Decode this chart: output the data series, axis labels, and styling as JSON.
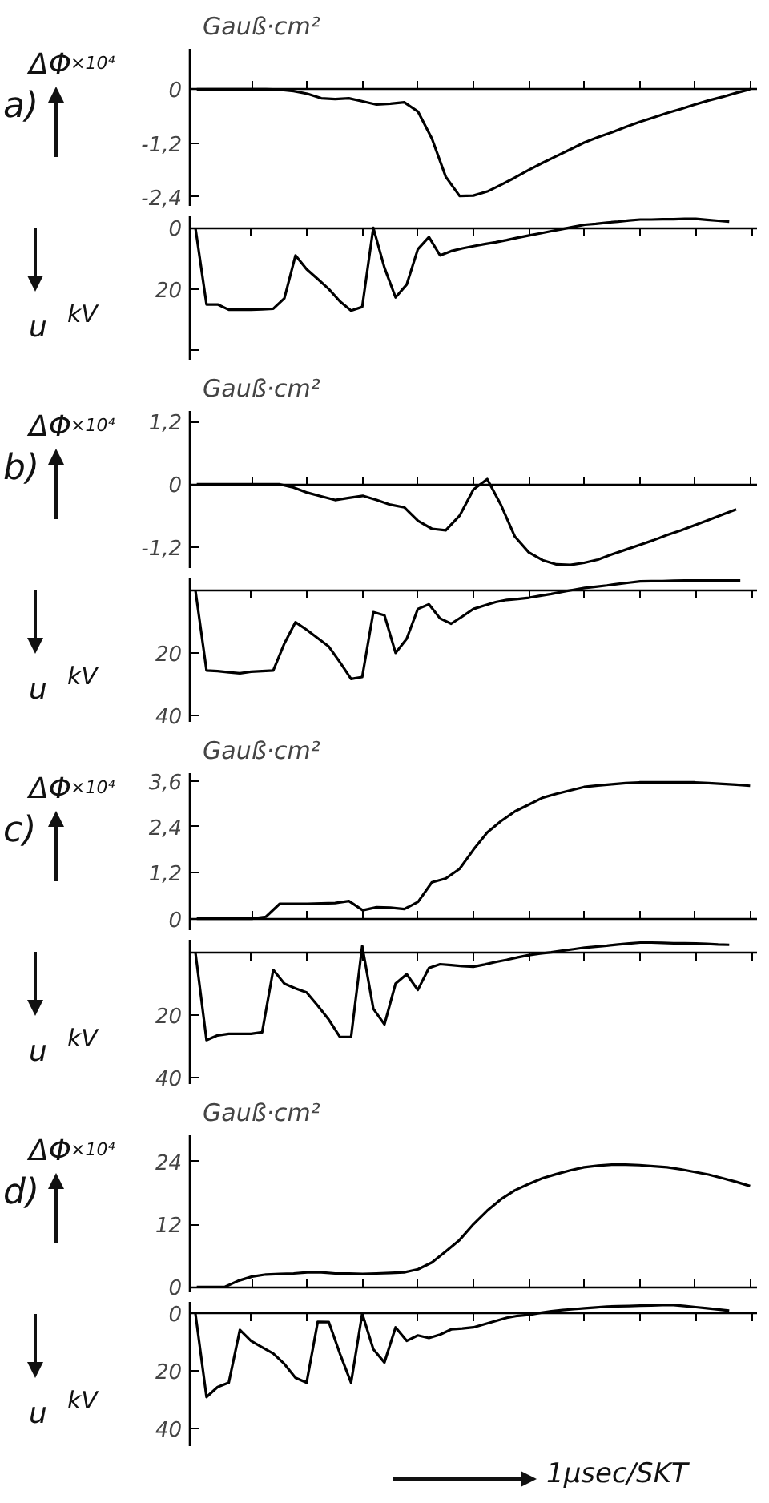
{
  "chart_data": [
    {
      "type": "line",
      "title": "a)",
      "ylabel": "ΔΦ",
      "annotations": [
        "×10⁴",
        "Gauß·cm²"
      ],
      "color": "#000000",
      "ylim": [
        -2.6,
        0.9
      ],
      "tick_labels": "y",
      "yticks": [
        0,
        {
          "value": -1.2,
          "label": "-1,2"
        },
        {
          "value": -2.4,
          "label": "-2,4"
        }
      ],
      "categories": [
        null,
        null,
        null,
        null,
        null,
        null,
        null,
        null,
        null,
        null,
        null,
        null,
        null,
        null,
        null,
        null,
        null,
        null,
        null,
        null,
        null,
        null,
        null,
        null,
        null,
        null,
        null,
        null,
        null,
        null,
        null,
        null,
        null,
        null,
        null,
        null,
        null,
        null,
        null,
        null,
        null
      ],
      "values": [
        0,
        0,
        0,
        0,
        0,
        0,
        -0.01,
        -0.04,
        -0.1,
        -0.2,
        -0.22,
        -0.2,
        -0.27,
        -0.34,
        -0.32,
        -0.29,
        -0.5,
        -1.1,
        -1.95,
        -2.38,
        -2.37,
        -2.28,
        -2.13,
        -1.97,
        -1.8,
        -1.64,
        -1.49,
        -1.34,
        -1.19,
        -1.07,
        -0.96,
        -0.84,
        -0.73,
        -0.63,
        -0.53,
        -0.44,
        -0.34,
        -0.25,
        -0.17,
        -0.08,
        0
      ]
    },
    {
      "type": "line",
      "ylabel": "u",
      "annotations": [
        "kV"
      ],
      "color": "#000000",
      "ylim": [
        43,
        -4
      ],
      "tick_labels": "y",
      "yticks": [
        0,
        20,
        {
          "value": 40,
          "label": null
        }
      ],
      "categories": [
        null,
        null,
        null,
        null,
        null,
        null,
        null,
        null,
        null,
        null,
        null,
        null,
        null,
        null,
        null,
        null,
        null,
        null,
        null,
        null,
        null,
        null,
        null,
        null,
        null,
        null,
        null,
        null,
        null,
        null,
        null,
        null,
        null,
        null,
        null,
        null,
        null,
        null,
        null,
        null,
        null,
        null,
        null,
        null,
        null,
        null,
        null,
        null,
        null,
        null,
        null
      ],
      "values": [
        0,
        25,
        25,
        26.7,
        26.7,
        26.7,
        26.6,
        26.4,
        23,
        9,
        13.5,
        16.7,
        20,
        24,
        27,
        25.8,
        0,
        13,
        22.7,
        18.5,
        7,
        3,
        9,
        7.6,
        6.7,
        6,
        5.3,
        4.7,
        4,
        3.2,
        2.5,
        1.8,
        1.1,
        0.4,
        -0.3,
        -1,
        -1.3,
        -1.7,
        -2,
        -2.4,
        -2.7,
        -2.7,
        -2.8,
        -2.8,
        -2.9,
        -2.9,
        -2.6,
        -2.3,
        -2,
        null,
        null
      ]
    },
    {
      "type": "line",
      "title": "b)",
      "ylabel": "ΔΦ",
      "annotations": [
        "×10⁴",
        "Gauß·cm²"
      ],
      "color": "#000000",
      "ylim": [
        -1.6,
        1.4
      ],
      "tick_labels": "y",
      "yticks": [
        {
          "value": 1.2,
          "label": "1,2"
        },
        0,
        {
          "value": -1.2,
          "label": "-1,2"
        }
      ],
      "categories": [
        null,
        null,
        null,
        null,
        null,
        null,
        null,
        null,
        null,
        null,
        null,
        null,
        null,
        null,
        null,
        null,
        null,
        null,
        null,
        null,
        null,
        null,
        null,
        null,
        null,
        null,
        null,
        null,
        null,
        null,
        null,
        null,
        null,
        null,
        null,
        null,
        null,
        null,
        null,
        null,
        null
      ],
      "values": [
        0,
        0,
        0,
        0,
        0,
        0,
        0,
        -0.06,
        -0.16,
        -0.23,
        -0.3,
        -0.26,
        -0.22,
        -0.3,
        -0.39,
        -0.44,
        -0.7,
        -0.85,
        -0.88,
        -0.6,
        -0.1,
        0.1,
        -0.4,
        -1.0,
        -1.3,
        -1.45,
        -1.53,
        -1.54,
        -1.5,
        -1.44,
        -1.34,
        -1.25,
        -1.16,
        -1.07,
        -0.97,
        -0.88,
        -0.78,
        -0.68,
        -0.58,
        -0.48,
        null
      ]
    },
    {
      "type": "line",
      "ylabel": "u",
      "annotations": [
        "kV"
      ],
      "color": "#000000",
      "ylim": [
        42,
        -4
      ],
      "tick_labels": "y",
      "yticks": [
        20,
        40
      ],
      "categories": [
        null,
        null,
        null,
        null,
        null,
        null,
        null,
        null,
        null,
        null,
        null,
        null,
        null,
        null,
        null,
        null,
        null,
        null,
        null,
        null,
        null,
        null,
        null,
        null,
        null,
        null,
        null,
        null,
        null,
        null,
        null,
        null,
        null,
        null,
        null,
        null,
        null,
        null,
        null,
        null,
        null,
        null,
        null,
        null,
        null,
        null,
        null,
        null,
        null,
        null,
        null
      ],
      "values": [
        0,
        25.6,
        25.8,
        26.2,
        26.5,
        26,
        25.8,
        25.6,
        17,
        10.2,
        12.6,
        15.3,
        18,
        23,
        28.3,
        27.7,
        7,
        8,
        20,
        15.5,
        6,
        4.5,
        9,
        10.7,
        8.4,
        6,
        4.9,
        3.8,
        3.1,
        2.8,
        2.4,
        1.8,
        1.2,
        0.5,
        -0.1,
        -0.7,
        -1.1,
        -1.5,
        -2,
        -2.4,
        -2.8,
        -2.9,
        -2.9,
        -3,
        -3.1,
        -3.1,
        -3.1,
        -3.1,
        -3.1,
        -3.1,
        null
      ]
    },
    {
      "type": "line",
      "title": "c)",
      "ylabel": "ΔΦ",
      "annotations": [
        "×10⁴",
        "Gauß·cm²"
      ],
      "color": "#000000",
      "ylim": [
        -0.3,
        3.8
      ],
      "tick_labels": "y",
      "yticks": [
        0,
        {
          "value": 1.2,
          "label": "1,2"
        },
        {
          "value": 2.4,
          "label": "2,4"
        },
        {
          "value": 3.6,
          "label": "3,6"
        }
      ],
      "categories": [
        null,
        null,
        null,
        null,
        null,
        null,
        null,
        null,
        null,
        null,
        null,
        null,
        null,
        null,
        null,
        null,
        null,
        null,
        null,
        null,
        null,
        null,
        null,
        null,
        null,
        null,
        null,
        null,
        null,
        null,
        null,
        null,
        null,
        null,
        null,
        null,
        null,
        null,
        null,
        null,
        null
      ],
      "values": [
        0,
        0,
        0,
        0,
        0,
        0.05,
        0.39,
        0.39,
        0.39,
        0.4,
        0.41,
        0.46,
        0.22,
        0.3,
        0.29,
        0.25,
        0.44,
        0.95,
        1.05,
        1.3,
        1.8,
        2.25,
        2.55,
        2.8,
        2.98,
        3.16,
        3.26,
        3.35,
        3.44,
        3.48,
        3.51,
        3.54,
        3.56,
        3.56,
        3.56,
        3.56,
        3.56,
        3.54,
        3.52,
        3.5,
        3.47
      ]
    },
    {
      "type": "line",
      "ylabel": "u",
      "annotations": [
        "kV"
      ],
      "color": "#000000",
      "ylim": [
        42,
        -4
      ],
      "tick_labels": "y",
      "yticks": [
        20,
        40
      ],
      "categories": [
        null,
        null,
        null,
        null,
        null,
        null,
        null,
        null,
        null,
        null,
        null,
        null,
        null,
        null,
        null,
        null,
        null,
        null,
        null,
        null,
        null,
        null,
        null,
        null,
        null,
        null,
        null,
        null,
        null,
        null,
        null,
        null,
        null,
        null,
        null,
        null,
        null,
        null,
        null,
        null,
        null,
        null,
        null,
        null,
        null,
        null,
        null,
        null,
        null,
        null,
        null
      ],
      "values": [
        0,
        28,
        26.5,
        26,
        26,
        26,
        25.5,
        5.6,
        10,
        11.5,
        12.8,
        17,
        21.5,
        27,
        27,
        -2,
        18,
        23,
        10,
        7,
        12,
        5,
        3.8,
        4.1,
        4.4,
        4.6,
        3.9,
        3.1,
        2.4,
        1.6,
        0.9,
        0.4,
        0,
        -0.5,
        -1,
        -1.5,
        -1.8,
        -2.1,
        -2.5,
        -2.8,
        -3.1,
        -3.1,
        -3,
        -2.9,
        -2.9,
        -2.8,
        -2.7,
        -2.5,
        -2.4,
        null,
        null
      ]
    },
    {
      "type": "line",
      "title": "d)",
      "ylabel": "ΔΦ",
      "annotations": [
        "×10⁴",
        "Gauß·cm²"
      ],
      "color": "#000000",
      "ylim": [
        -1,
        29
      ],
      "tick_labels": "y",
      "yticks": [
        0,
        12,
        24
      ],
      "categories": [
        null,
        null,
        null,
        null,
        null,
        null,
        null,
        null,
        null,
        null,
        null,
        null,
        null,
        null,
        null,
        null,
        null,
        null,
        null,
        null,
        null,
        null,
        null,
        null,
        null,
        null,
        null,
        null,
        null,
        null,
        null,
        null,
        null,
        null,
        null,
        null,
        null,
        null,
        null,
        null,
        null
      ],
      "values": [
        0,
        0,
        0,
        1.2,
        2.0,
        2.4,
        2.5,
        2.6,
        2.8,
        2.8,
        2.6,
        2.6,
        2.5,
        2.6,
        2.7,
        2.8,
        3.4,
        4.7,
        6.8,
        9,
        12,
        14.6,
        16.8,
        18.5,
        19.7,
        20.8,
        21.6,
        22.3,
        22.9,
        23.2,
        23.4,
        23.4,
        23.3,
        23.1,
        22.9,
        22.5,
        22,
        21.5,
        20.8,
        20.1,
        19.3
      ]
    },
    {
      "type": "line",
      "ylabel": "u",
      "annotations": [
        "kV",
        "1µsec/SKT"
      ],
      "color": "#000000",
      "ylim": [
        46,
        -4
      ],
      "tick_labels": "y",
      "yticks": [
        0,
        20,
        40
      ],
      "categories": [
        null,
        null,
        null,
        null,
        null,
        null,
        null,
        null,
        null,
        null,
        null,
        null,
        null,
        null,
        null,
        null,
        null,
        null,
        null,
        null,
        null,
        null,
        null,
        null,
        null,
        null,
        null,
        null,
        null,
        null,
        null,
        null,
        null,
        null,
        null,
        null,
        null,
        null,
        null,
        null,
        null,
        null,
        null,
        null,
        null,
        null,
        null,
        null,
        null,
        null,
        null
      ],
      "values": [
        0,
        29,
        25.5,
        24,
        5.7,
        9.5,
        11.7,
        13.9,
        17.5,
        22.3,
        24,
        2.9,
        3,
        14,
        24,
        0,
        12.4,
        17,
        4.8,
        9.5,
        7.6,
        8.5,
        7.3,
        5.5,
        5.2,
        4.8,
        3.7,
        2.6,
        1.5,
        0.8,
        0.5,
        -0.2,
        -0.8,
        -1.2,
        -1.5,
        -1.8,
        -2.1,
        -2.4,
        -2.5,
        -2.6,
        -2.7,
        -2.8,
        -2.9,
        -2.9,
        -2.6,
        -2.2,
        -1.8,
        -1.4,
        -1,
        null,
        null
      ]
    }
  ]
}
